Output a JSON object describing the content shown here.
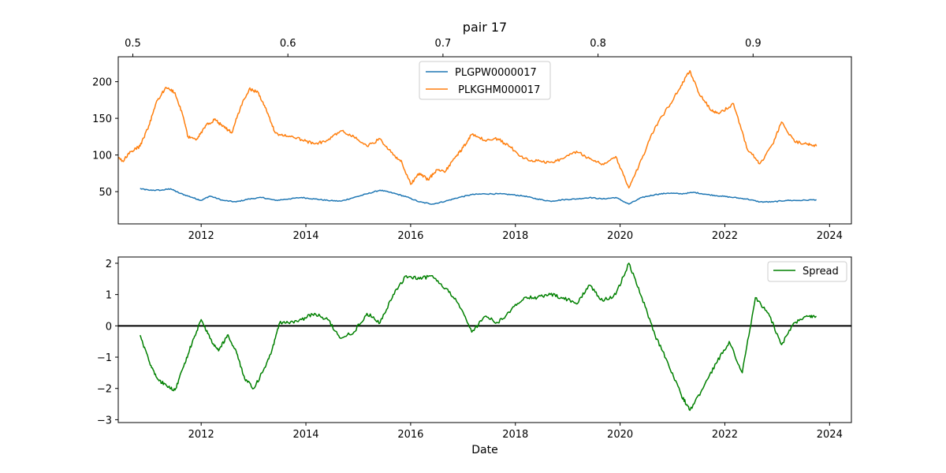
{
  "chart_data": [
    {
      "type": "line",
      "title": "pair 17",
      "xlabel": "",
      "ylabel": "",
      "xlim": [
        "2010-06-01",
        "2024-06-01"
      ],
      "ylim": [
        6,
        234
      ],
      "x_ticks": [
        2012,
        2014,
        2016,
        2018,
        2020,
        2022,
        2024
      ],
      "y_ticks": [
        50,
        100,
        150,
        200
      ],
      "secondary_x_ticks": [
        0.5,
        0.6,
        0.7,
        0.8,
        0.9
      ],
      "secondary_xlim": [
        0.4906,
        0.9634
      ],
      "legend_position": "upper center",
      "grid": false,
      "series": [
        {
          "name": "PLGPW0000017",
          "color": "#1f77b4",
          "points": [
            [
              "2010-11-01",
              54
            ],
            [
              "2011-01-01",
              52
            ],
            [
              "2011-04-01",
              52
            ],
            [
              "2011-06-01",
              54
            ],
            [
              "2011-08-01",
              48
            ],
            [
              "2011-11-01",
              42
            ],
            [
              "2012-01-01",
              38
            ],
            [
              "2012-03-01",
              44
            ],
            [
              "2012-06-01",
              38
            ],
            [
              "2012-09-01",
              36
            ],
            [
              "2012-12-01",
              40
            ],
            [
              "2013-03-01",
              42
            ],
            [
              "2013-06-01",
              38
            ],
            [
              "2013-09-01",
              40
            ],
            [
              "2013-12-01",
              42
            ],
            [
              "2014-03-01",
              40
            ],
            [
              "2014-06-01",
              38
            ],
            [
              "2014-09-01",
              37
            ],
            [
              "2014-12-01",
              42
            ],
            [
              "2015-03-01",
              47
            ],
            [
              "2015-06-01",
              52
            ],
            [
              "2015-09-01",
              48
            ],
            [
              "2015-12-01",
              43
            ],
            [
              "2016-03-01",
              36
            ],
            [
              "2016-06-01",
              33
            ],
            [
              "2016-09-01",
              37
            ],
            [
              "2016-12-01",
              42
            ],
            [
              "2017-03-01",
              46
            ],
            [
              "2017-06-01",
              47
            ],
            [
              "2017-09-01",
              47
            ],
            [
              "2017-12-01",
              46
            ],
            [
              "2018-03-01",
              44
            ],
            [
              "2018-06-01",
              40
            ],
            [
              "2018-09-01",
              37
            ],
            [
              "2018-12-01",
              39
            ],
            [
              "2019-03-01",
              40
            ],
            [
              "2019-06-01",
              42
            ],
            [
              "2019-09-01",
              40
            ],
            [
              "2019-12-01",
              42
            ],
            [
              "2020-03-01",
              33
            ],
            [
              "2020-06-01",
              42
            ],
            [
              "2020-09-01",
              46
            ],
            [
              "2020-12-01",
              48
            ],
            [
              "2021-03-01",
              47
            ],
            [
              "2021-06-01",
              49
            ],
            [
              "2021-09-01",
              46
            ],
            [
              "2021-12-01",
              44
            ],
            [
              "2022-03-01",
              42
            ],
            [
              "2022-06-01",
              40
            ],
            [
              "2022-09-01",
              36
            ],
            [
              "2022-12-01",
              36
            ],
            [
              "2023-03-01",
              38
            ],
            [
              "2023-06-01",
              38
            ],
            [
              "2023-10-01",
              39
            ]
          ]
        },
        {
          "name": " PLKGHM000017",
          "color": "#ff7f0e",
          "points": [
            [
              "2010-06-01",
              96
            ],
            [
              "2010-07-01",
              92
            ],
            [
              "2010-09-01",
              105
            ],
            [
              "2010-11-01",
              112
            ],
            [
              "2011-01-01",
              140
            ],
            [
              "2011-03-01",
              175
            ],
            [
              "2011-05-01",
              192
            ],
            [
              "2011-07-01",
              185
            ],
            [
              "2011-09-01",
              150
            ],
            [
              "2011-10-01",
              125
            ],
            [
              "2011-12-01",
              122
            ],
            [
              "2012-02-01",
              140
            ],
            [
              "2012-04-01",
              148
            ],
            [
              "2012-06-01",
              140
            ],
            [
              "2012-08-01",
              130
            ],
            [
              "2012-10-01",
              165
            ],
            [
              "2012-12-01",
              190
            ],
            [
              "2013-02-01",
              186
            ],
            [
              "2013-04-01",
              160
            ],
            [
              "2013-06-01",
              130
            ],
            [
              "2013-09-01",
              125
            ],
            [
              "2013-12-01",
              121
            ],
            [
              "2014-03-01",
              115
            ],
            [
              "2014-06-01",
              120
            ],
            [
              "2014-09-01",
              133
            ],
            [
              "2014-12-01",
              125
            ],
            [
              "2015-03-01",
              112
            ],
            [
              "2015-06-01",
              122
            ],
            [
              "2015-09-01",
              100
            ],
            [
              "2015-11-01",
              90
            ],
            [
              "2016-01-01",
              60
            ],
            [
              "2016-03-01",
              75
            ],
            [
              "2016-05-01",
              66
            ],
            [
              "2016-07-01",
              80
            ],
            [
              "2016-09-01",
              78
            ],
            [
              "2016-11-01",
              95
            ],
            [
              "2017-01-01",
              110
            ],
            [
              "2017-03-01",
              128
            ],
            [
              "2017-06-01",
              120
            ],
            [
              "2017-09-01",
              122
            ],
            [
              "2017-12-01",
              110
            ],
            [
              "2018-03-01",
              95
            ],
            [
              "2018-06-01",
              92
            ],
            [
              "2018-09-01",
              90
            ],
            [
              "2018-12-01",
              95
            ],
            [
              "2019-03-01",
              105
            ],
            [
              "2019-06-01",
              95
            ],
            [
              "2019-09-01",
              88
            ],
            [
              "2019-12-01",
              98
            ],
            [
              "2020-03-01",
              55
            ],
            [
              "2020-06-01",
              95
            ],
            [
              "2020-09-01",
              138
            ],
            [
              "2020-12-01",
              165
            ],
            [
              "2021-03-01",
              195
            ],
            [
              "2021-05-01",
              215
            ],
            [
              "2021-07-01",
              185
            ],
            [
              "2021-10-01",
              160
            ],
            [
              "2021-12-01",
              158
            ],
            [
              "2022-03-01",
              170
            ],
            [
              "2022-06-01",
              110
            ],
            [
              "2022-09-01",
              88
            ],
            [
              "2022-12-01",
              115
            ],
            [
              "2023-02-01",
              145
            ],
            [
              "2023-05-01",
              118
            ],
            [
              "2023-08-01",
              115
            ],
            [
              "2023-10-01",
              112
            ]
          ]
        }
      ]
    },
    {
      "type": "line",
      "title": "",
      "xlabel": "Date",
      "ylabel": "",
      "xlim": [
        "2010-06-01",
        "2024-06-01"
      ],
      "ylim": [
        -3.09,
        2.2
      ],
      "x_ticks": [
        2012,
        2014,
        2016,
        2018,
        2020,
        2022,
        2024
      ],
      "y_ticks": [
        -3,
        -2,
        -1,
        0,
        1,
        2
      ],
      "hline": 0,
      "legend_position": "upper right",
      "grid": false,
      "series": [
        {
          "name": "Spread",
          "color": "#008000",
          "points": [
            [
              "2010-11-01",
              -0.3
            ],
            [
              "2011-01-01",
              -1.1
            ],
            [
              "2011-03-01",
              -1.7
            ],
            [
              "2011-05-01",
              -1.9
            ],
            [
              "2011-07-01",
              -2.05
            ],
            [
              "2011-09-01",
              -1.3
            ],
            [
              "2011-11-01",
              -0.5
            ],
            [
              "2012-01-01",
              0.2
            ],
            [
              "2012-03-01",
              -0.4
            ],
            [
              "2012-05-01",
              -0.8
            ],
            [
              "2012-07-01",
              -0.3
            ],
            [
              "2012-09-01",
              -0.8
            ],
            [
              "2012-11-01",
              -1.7
            ],
            [
              "2013-01-01",
              -2.0
            ],
            [
              "2013-03-01",
              -1.5
            ],
            [
              "2013-05-01",
              -0.9
            ],
            [
              "2013-07-01",
              0.1
            ],
            [
              "2013-09-01",
              0.1
            ],
            [
              "2013-12-01",
              0.2
            ],
            [
              "2014-03-01",
              0.4
            ],
            [
              "2014-06-01",
              0.2
            ],
            [
              "2014-09-01",
              -0.4
            ],
            [
              "2014-12-01",
              -0.2
            ],
            [
              "2015-03-01",
              0.4
            ],
            [
              "2015-06-01",
              0.1
            ],
            [
              "2015-09-01",
              1.0
            ],
            [
              "2015-12-01",
              1.6
            ],
            [
              "2016-03-01",
              1.5
            ],
            [
              "2016-06-01",
              1.6
            ],
            [
              "2016-09-01",
              1.2
            ],
            [
              "2016-12-01",
              0.7
            ],
            [
              "2017-03-01",
              -0.2
            ],
            [
              "2017-06-01",
              0.3
            ],
            [
              "2017-09-01",
              0.1
            ],
            [
              "2017-12-01",
              0.5
            ],
            [
              "2018-03-01",
              0.9
            ],
            [
              "2018-06-01",
              0.9
            ],
            [
              "2018-09-01",
              1.0
            ],
            [
              "2018-12-01",
              0.9
            ],
            [
              "2019-03-01",
              0.7
            ],
            [
              "2019-06-01",
              1.3
            ],
            [
              "2019-09-01",
              0.8
            ],
            [
              "2019-12-01",
              1.0
            ],
            [
              "2020-03-01",
              2.0
            ],
            [
              "2020-06-01",
              0.9
            ],
            [
              "2020-09-01",
              -0.3
            ],
            [
              "2020-12-01",
              -1.2
            ],
            [
              "2021-03-01",
              -2.2
            ],
            [
              "2021-05-01",
              -2.7
            ],
            [
              "2021-08-01",
              -2.0
            ],
            [
              "2021-11-01",
              -1.2
            ],
            [
              "2022-02-01",
              -0.5
            ],
            [
              "2022-05-01",
              -1.5
            ],
            [
              "2022-08-01",
              0.9
            ],
            [
              "2022-11-01",
              0.4
            ],
            [
              "2023-02-01",
              -0.6
            ],
            [
              "2023-05-01",
              0.1
            ],
            [
              "2023-08-01",
              0.3
            ],
            [
              "2023-10-01",
              0.3
            ]
          ]
        }
      ]
    }
  ]
}
